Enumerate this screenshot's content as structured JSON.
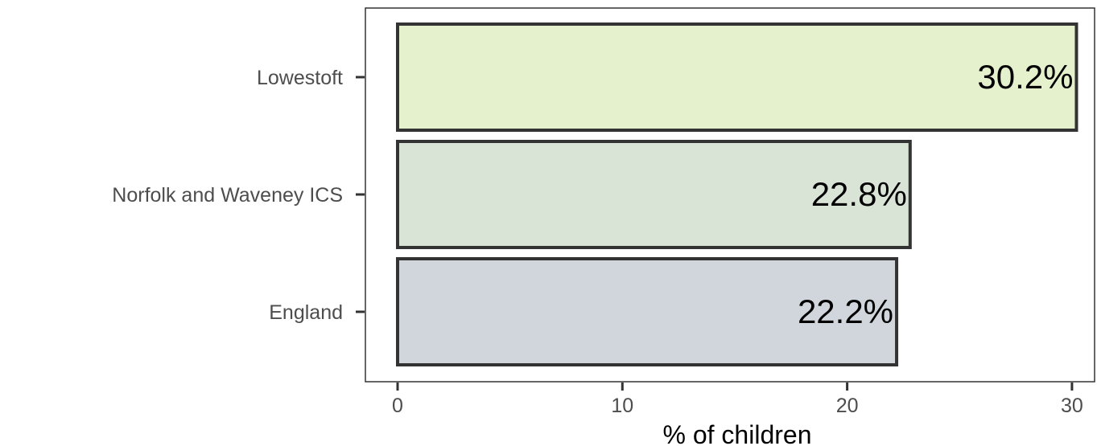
{
  "chart_data": {
    "type": "bar",
    "orientation": "horizontal",
    "categories": [
      "Lowestoft",
      "Norfolk and Waveney ICS",
      "England"
    ],
    "values": [
      30.2,
      22.8,
      22.2
    ],
    "data_labels": [
      "30.2%",
      "22.8%",
      "22.2%"
    ],
    "bar_colors": [
      "#e5f0cc",
      "#d9e3d6",
      "#d1d5dc"
    ],
    "xlabel": "% of children",
    "ylabel": "",
    "title": "",
    "xlim": [
      0,
      30.5
    ],
    "x_ticks": [
      0,
      10,
      20,
      30
    ],
    "x_tick_labels": [
      "0",
      "10",
      "20",
      "30"
    ],
    "grid": false,
    "legend": "none"
  }
}
